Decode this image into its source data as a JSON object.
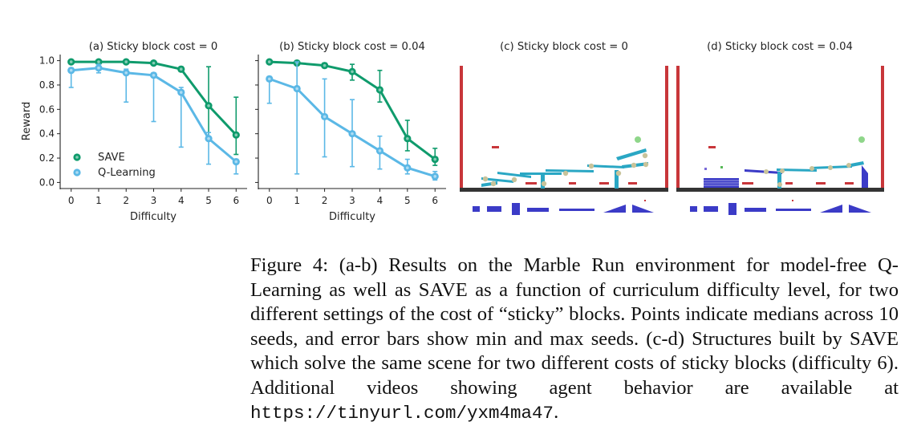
{
  "colors": {
    "save": "#0f9b6c",
    "qlearning": "#5bb8e6",
    "wall": "#c8363a",
    "floor": "#343434",
    "block": "#3b3bc7",
    "ramp": "#2aa7c4",
    "marble": "#c8c39a"
  },
  "chart_data": [
    {
      "type": "line",
      "title": "(a) Sticky block cost = 0",
      "xlabel": "Difficulty",
      "ylabel": "Reward",
      "x": [
        0,
        1,
        2,
        3,
        4,
        5,
        6
      ],
      "xticks": [
        "0",
        "1",
        "2",
        "3",
        "4",
        "5",
        "6"
      ],
      "yticks": [
        "0.0",
        "0.2",
        "0.4",
        "0.6",
        "0.8",
        "1.0"
      ],
      "xlim": [
        -0.4,
        6.4
      ],
      "ylim": [
        -0.05,
        1.05
      ],
      "legend": "lower-left",
      "series": [
        {
          "name": "SAVE",
          "color": "#0f9b6c",
          "values": [
            0.99,
            0.99,
            0.99,
            0.98,
            0.93,
            0.63,
            0.39
          ],
          "min": [
            0.99,
            0.99,
            0.98,
            0.97,
            0.91,
            0.36,
            0.23
          ],
          "max": [
            1.0,
            1.0,
            1.0,
            0.99,
            0.95,
            0.95,
            0.7
          ]
        },
        {
          "name": "Q-Learning",
          "color": "#5bb8e6",
          "values": [
            0.92,
            0.94,
            0.9,
            0.88,
            0.74,
            0.36,
            0.17
          ],
          "min": [
            0.78,
            0.9,
            0.66,
            0.5,
            0.29,
            0.15,
            0.07
          ],
          "max": [
            0.94,
            0.97,
            0.93,
            0.9,
            0.78,
            0.41,
            0.19
          ]
        }
      ]
    },
    {
      "type": "line",
      "title": "(b) Sticky block cost = 0.04",
      "xlabel": "Difficulty",
      "ylabel": "",
      "x": [
        0,
        1,
        2,
        3,
        4,
        5,
        6
      ],
      "xticks": [
        "0",
        "1",
        "2",
        "3",
        "4",
        "5",
        "6"
      ],
      "yticks": [],
      "xlim": [
        -0.4,
        6.4
      ],
      "ylim": [
        -0.05,
        1.05
      ],
      "series": [
        {
          "name": "SAVE",
          "color": "#0f9b6c",
          "values": [
            0.99,
            0.98,
            0.96,
            0.91,
            0.76,
            0.36,
            0.19
          ],
          "min": [
            0.98,
            0.97,
            0.94,
            0.84,
            0.66,
            0.26,
            0.14
          ],
          "max": [
            1.0,
            1.0,
            0.98,
            0.97,
            0.92,
            0.51,
            0.28
          ]
        },
        {
          "name": "Q-Learning",
          "color": "#5bb8e6",
          "values": [
            0.85,
            0.77,
            0.54,
            0.4,
            0.26,
            0.12,
            0.05
          ],
          "min": [
            0.65,
            0.07,
            0.21,
            0.13,
            0.11,
            0.07,
            0.02
          ],
          "max": [
            0.87,
            0.99,
            0.85,
            0.68,
            0.38,
            0.19,
            0.09
          ]
        }
      ]
    }
  ],
  "panels": {
    "c": {
      "title": "(c) Sticky block cost = 0"
    },
    "d": {
      "title": "(d) Sticky block cost = 0.04"
    }
  },
  "caption": {
    "text": "Figure 4: (a-b) Results on the Marble Run environment for model-free Q-Learning as well as SAVE as a function of curriculum difficulty level, for two different settings of the cost of “sticky” blocks. Points indicate medians across 10 seeds, and error bars show min and max seeds. (c-d) Structures built by SAVE which solve the same scene for two different costs of sticky blocks (difficulty 6). Additional videos showing agent behavior are available at ",
    "url": "https://tinyurl.com/yxm4ma47",
    "end": "."
  }
}
